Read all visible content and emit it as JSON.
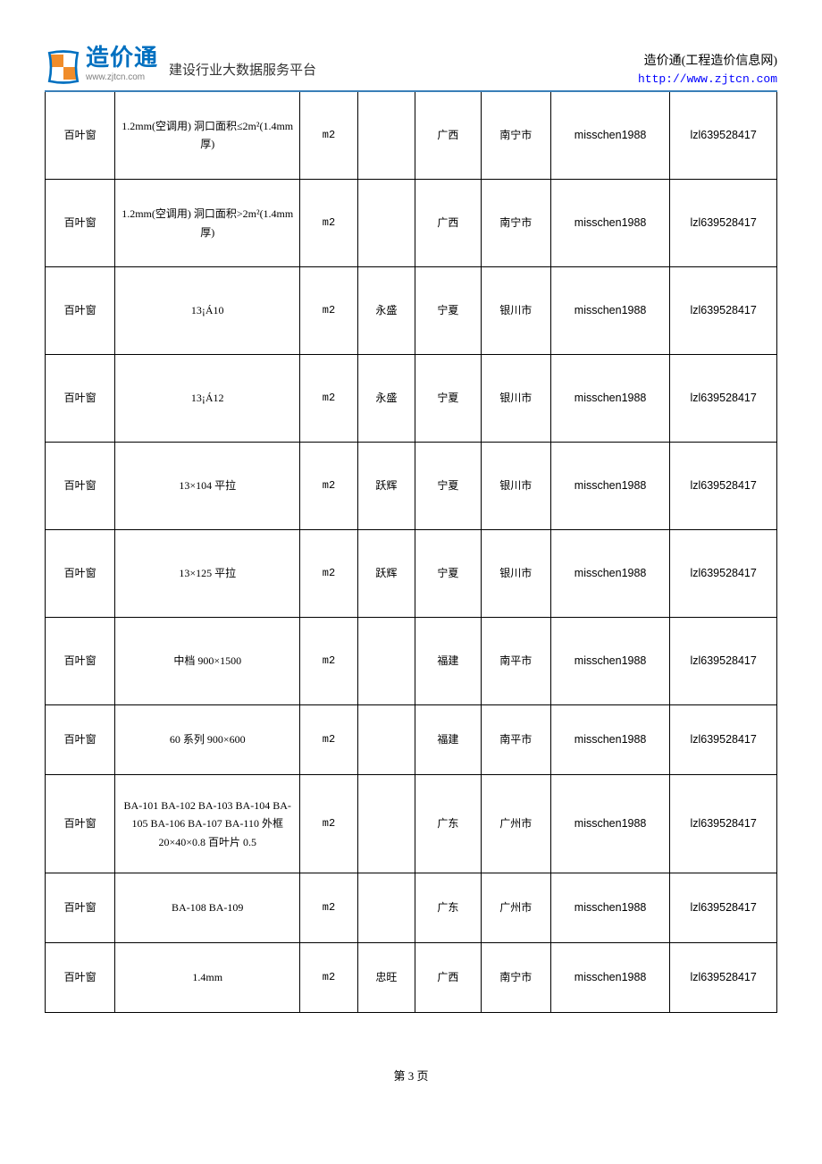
{
  "header": {
    "logo_text": "造价通",
    "logo_url": "www.zjtcn.com",
    "platform_text": "建设行业大数据服务平台",
    "right_title": "造价通(工程造价信息网)",
    "right_link": "http://www.zjtcn.com"
  },
  "table": {
    "rows": [
      {
        "name": "百叶窗",
        "spec": "1.2mm(空调用) 洞口面积≤2m²(1.4mm 厚)",
        "unit": "m2",
        "brand": "",
        "province": "广西",
        "city": "南宁市",
        "user1": "misschen1988",
        "user2": "lzl639528417"
      },
      {
        "name": "百叶窗",
        "spec": "1.2mm(空调用) 洞口面积>2m²(1.4mm 厚)",
        "unit": "m2",
        "brand": "",
        "province": "广西",
        "city": "南宁市",
        "user1": "misschen1988",
        "user2": "lzl639528417"
      },
      {
        "name": "百叶窗",
        "spec": "13¡Á10",
        "unit": "m2",
        "brand": "永盛",
        "province": "宁夏",
        "city": "银川市",
        "user1": "misschen1988",
        "user2": "lzl639528417"
      },
      {
        "name": "百叶窗",
        "spec": "13¡Á12",
        "unit": "m2",
        "brand": "永盛",
        "province": "宁夏",
        "city": "银川市",
        "user1": "misschen1988",
        "user2": "lzl639528417"
      },
      {
        "name": "百叶窗",
        "spec": "13×104 平拉",
        "unit": "m2",
        "brand": "跃辉",
        "province": "宁夏",
        "city": "银川市",
        "user1": "misschen1988",
        "user2": "lzl639528417"
      },
      {
        "name": "百叶窗",
        "spec": "13×125 平拉",
        "unit": "m2",
        "brand": "跃辉",
        "province": "宁夏",
        "city": "银川市",
        "user1": "misschen1988",
        "user2": "lzl639528417"
      },
      {
        "name": "百叶窗",
        "spec": "中档 900×1500",
        "unit": "m2",
        "brand": "",
        "province": "福建",
        "city": "南平市",
        "user1": "misschen1988",
        "user2": "lzl639528417"
      },
      {
        "name": "百叶窗",
        "spec": "60 系列 900×600",
        "unit": "m2",
        "brand": "",
        "province": "福建",
        "city": "南平市",
        "user1": "misschen1988",
        "user2": "lzl639528417"
      },
      {
        "name": "百叶窗",
        "spec": "BA-101 BA-102 BA-103 BA-104 BA-105 BA-106 BA-107 BA-110 外框 20×40×0.8 百叶片 0.5",
        "unit": "m2",
        "brand": "",
        "province": "广东",
        "city": "广州市",
        "user1": "misschen1988",
        "user2": "lzl639528417"
      },
      {
        "name": "百叶窗",
        "spec": "BA-108 BA-109",
        "unit": "m2",
        "brand": "",
        "province": "广东",
        "city": "广州市",
        "user1": "misschen1988",
        "user2": "lzl639528417"
      },
      {
        "name": "百叶窗",
        "spec": "1.4mm",
        "unit": "m2",
        "brand": "忠旺",
        "province": "广西",
        "city": "南宁市",
        "user1": "misschen1988",
        "user2": "lzl639528417"
      }
    ]
  },
  "footer": {
    "page_text": "第 3 页"
  },
  "styling": {
    "logo_color": "#0070c0",
    "logo_accent": "#f08c2a",
    "divider_color": "#3a7fb8",
    "link_color": "#0000ff",
    "border_color": "#000000",
    "font_main": "SimSun",
    "font_mono": "Courier New",
    "col_widths_pct": [
      8.5,
      22.5,
      7,
      7,
      8,
      8.5,
      14.5,
      13
    ]
  }
}
